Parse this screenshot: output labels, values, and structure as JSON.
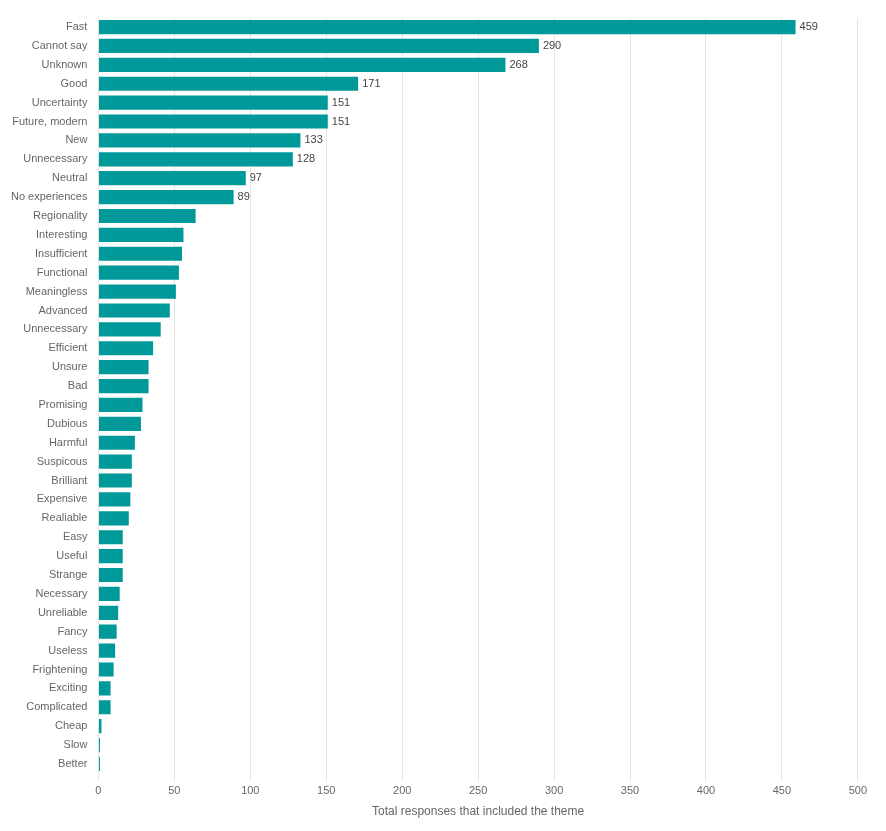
{
  "chart_data": {
    "type": "bar",
    "orientation": "horizontal",
    "xlabel": "Total responses that included the theme",
    "categories": [
      "Fast",
      "Cannot say",
      "Unknown",
      "Good",
      "Uncertainty",
      "Future, modern",
      "New",
      "Unnecessary",
      "Neutral",
      "No experiences",
      "Regionality",
      "Interesting",
      "Insufficient",
      "Functional",
      "Meaningless",
      "Advanced",
      "Unnecessary",
      "Efficient",
      "Unsure",
      "Bad",
      "Promising",
      "Dubious",
      "Harmful",
      "Suspicous",
      "Brilliant",
      "Expensive",
      "Realiable",
      "Easy",
      "Useful",
      "Strange",
      "Necessary",
      "Unreliable",
      "Fancy",
      "Useless",
      "Frightening",
      "Exciting",
      "Complicated",
      "Cheap",
      "Slow",
      "Better"
    ],
    "values": [
      459,
      290,
      268,
      171,
      151,
      151,
      133,
      128,
      97,
      89,
      64,
      56,
      55,
      53,
      51,
      47,
      41,
      36,
      33,
      33,
      29,
      28,
      24,
      22,
      22,
      21,
      20,
      16,
      16,
      16,
      14,
      13,
      12,
      11,
      10,
      8,
      8,
      2,
      1,
      1
    ],
    "data_labels": true,
    "value_labels": [
      "459",
      "290",
      "268",
      "171",
      "151",
      "151",
      "133",
      "128",
      "97",
      "89",
      null,
      null,
      null,
      null,
      null,
      null,
      null,
      null,
      null,
      null,
      null,
      null,
      null,
      null,
      null,
      null,
      null,
      null,
      null,
      null,
      null,
      null,
      null,
      null,
      null,
      null,
      null,
      null,
      null,
      null
    ],
    "color": "#009999",
    "xlim": [
      0,
      500
    ],
    "xticks": [
      0,
      50,
      100,
      150,
      200,
      250,
      300,
      350,
      400,
      450,
      500
    ],
    "grid": true
  }
}
